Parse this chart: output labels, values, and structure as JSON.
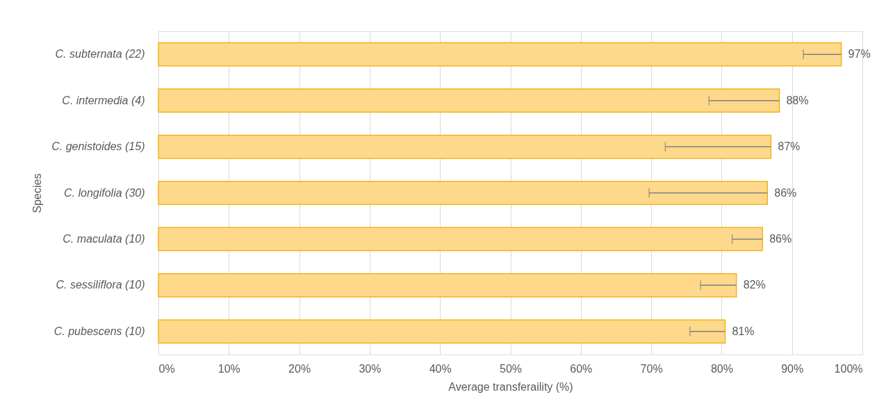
{
  "chart_data": {
    "type": "bar",
    "orientation": "horizontal",
    "categories": [
      "C. subternata (22)",
      "C. intermedia (4)",
      "C. genistoides (15)",
      "C. longifolia (30)",
      "C. maculata (10)",
      "C. sessiliflora (10)",
      "C. pubescens (10)"
    ],
    "values": [
      97,
      88.2,
      87,
      86.5,
      85.8,
      82.1,
      80.5
    ],
    "errors": [
      [
        91.6,
        97
      ],
      [
        78.2,
        88.2
      ],
      [
        72,
        87
      ],
      [
        69.7,
        86.5
      ],
      [
        81.5,
        85.8
      ],
      [
        77,
        82.1
      ],
      [
        75.5,
        80.5
      ]
    ],
    "value_labels": [
      "97%",
      "88%",
      "87%",
      "86%",
      "86%",
      "82%",
      "81%"
    ],
    "color": "#fed98c",
    "xlabel": "Average transferaility (%)",
    "ylabel": "Species",
    "xlim": [
      0,
      100
    ],
    "xticks": [
      {
        "value": 0,
        "label": "0%"
      },
      {
        "value": 10,
        "label": "10%"
      },
      {
        "value": 20,
        "label": "20%"
      },
      {
        "value": 30,
        "label": "30%"
      },
      {
        "value": 40,
        "label": "40%"
      },
      {
        "value": 50,
        "label": "50%"
      },
      {
        "value": 60,
        "label": "60%"
      },
      {
        "value": 70,
        "label": "70%"
      },
      {
        "value": 80,
        "label": "80%"
      },
      {
        "value": 90,
        "label": "90%"
      },
      {
        "value": 100,
        "label": "100%"
      }
    ],
    "grid": "x"
  }
}
